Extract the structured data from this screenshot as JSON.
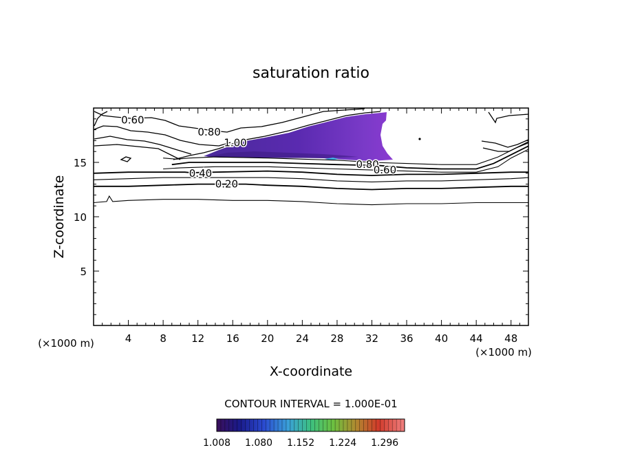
{
  "chart_data": {
    "type": "contour",
    "title": "saturation ratio",
    "xlabel": "X-coordinate",
    "ylabel": "Z-coordinate",
    "x_unit_label": "(×1000 m)",
    "y_unit_label": "(×1000 m)",
    "xlim": [
      0,
      50
    ],
    "ylim": [
      0,
      20
    ],
    "x_ticks": [
      4,
      8,
      12,
      16,
      20,
      24,
      28,
      32,
      36,
      40,
      44,
      48
    ],
    "y_ticks": [
      5,
      10,
      15
    ],
    "contour_interval_label": "CONTOUR INTERVAL = 1.000E-01",
    "contour_labels": [
      {
        "text": "0.60",
        "x": 4.5,
        "z": 18.9
      },
      {
        "text": "0.80",
        "x": 13.3,
        "z": 17.8
      },
      {
        "text": "1.00",
        "x": 16.3,
        "z": 16.8
      },
      {
        "text": "0.40",
        "x": 12.3,
        "z": 14.0
      },
      {
        "text": "0.20",
        "x": 15.3,
        "z": 13.0
      },
      {
        "text": "0.80",
        "x": 31.5,
        "z": 14.8
      },
      {
        "text": "0.60",
        "x": 33.5,
        "z": 14.3
      }
    ],
    "contours": [
      {
        "level": 0.1,
        "x": [
          0,
          1.5,
          1.8,
          2.2,
          4,
          8,
          12,
          16,
          20,
          24,
          28,
          32,
          36,
          40,
          44,
          48,
          50
        ],
        "z": [
          11.3,
          11.4,
          11.9,
          11.4,
          11.5,
          11.6,
          11.6,
          11.5,
          11.5,
          11.4,
          11.2,
          11.1,
          11.2,
          11.2,
          11.3,
          11.3,
          11.3
        ]
      },
      {
        "level": 0.2,
        "x": [
          0,
          4,
          8,
          12,
          14.5,
          17.5,
          20,
          24,
          28,
          32,
          36,
          40,
          44,
          48,
          50
        ],
        "z": [
          12.8,
          12.8,
          12.9,
          13.0,
          13.0,
          13.0,
          12.9,
          12.8,
          12.6,
          12.5,
          12.6,
          12.6,
          12.7,
          12.8,
          12.8
        ]
      },
      {
        "level": 0.3,
        "x": [
          0,
          4,
          8,
          12,
          16,
          20,
          24,
          28,
          32,
          36,
          40,
          44,
          48,
          50
        ],
        "z": [
          13.4,
          13.5,
          13.6,
          13.6,
          13.6,
          13.6,
          13.5,
          13.3,
          13.2,
          13.3,
          13.3,
          13.4,
          13.5,
          13.6
        ]
      },
      {
        "level": 0.4,
        "x": [
          0,
          4,
          8,
          10.5,
          11.2,
          14,
          20,
          24,
          28,
          32,
          36,
          40,
          44,
          48,
          50
        ],
        "z": [
          14.0,
          14.1,
          14.1,
          14.1,
          14.05,
          14.1,
          14.2,
          14.1,
          13.9,
          13.8,
          13.9,
          13.9,
          14.0,
          14.1,
          14.1
        ]
      },
      {
        "level": 0.5,
        "x": [
          8,
          10,
          14,
          20,
          24,
          28,
          32,
          36,
          40,
          44,
          46.5,
          48,
          50
        ],
        "z": [
          14.4,
          14.5,
          14.6,
          14.6,
          14.5,
          14.4,
          14.3,
          14.2,
          14.1,
          14.1,
          14.6,
          15.4,
          16.2
        ]
      },
      {
        "level": 0.6,
        "x": [
          9,
          11,
          14,
          20,
          24,
          28,
          33,
          36,
          40,
          44,
          46,
          48,
          50
        ],
        "z": [
          14.8,
          15.0,
          15.0,
          15.0,
          14.9,
          14.8,
          14.7,
          14.5,
          14.4,
          14.4,
          14.9,
          15.7,
          16.5
        ]
      },
      {
        "level": 0.7,
        "x": [
          8,
          9.5,
          11,
          14,
          20,
          24,
          28,
          32,
          36,
          40,
          44,
          46.5,
          48.5,
          50
        ],
        "z": [
          15.4,
          15.3,
          15.4,
          15.5,
          15.4,
          15.3,
          15.2,
          15.0,
          14.9,
          14.8,
          14.8,
          15.5,
          16.3,
          16.8
        ]
      }
    ],
    "colorbar": {
      "ticks": [
        "1.008",
        "1.080",
        "1.152",
        "1.224",
        "1.296"
      ],
      "min": 1.008,
      "max": 1.33
    }
  }
}
